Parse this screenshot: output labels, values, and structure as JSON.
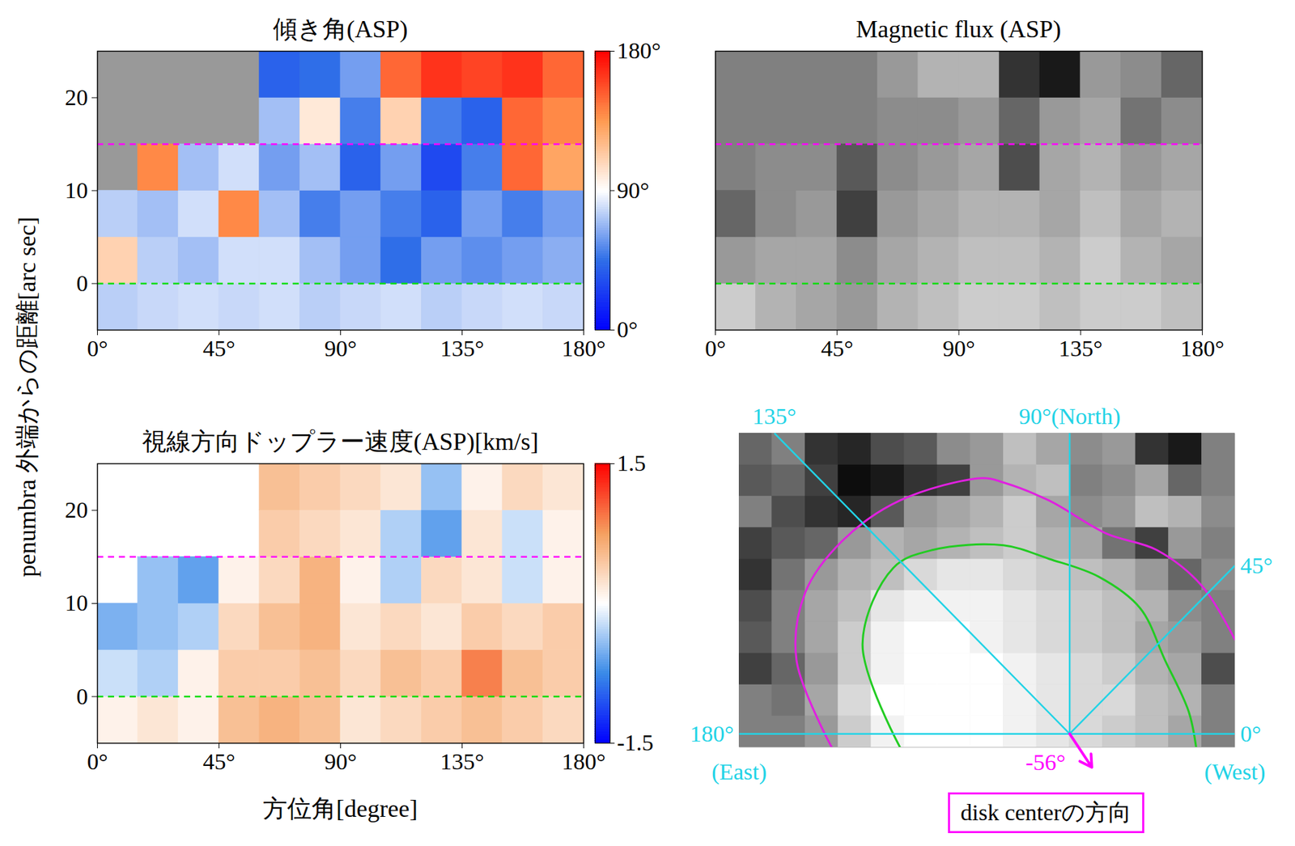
{
  "ylabel": "penumbra 外端からの距離[arc sec]",
  "chart_data": [
    {
      "type": "heatmap",
      "title": "傾き角(ASP)",
      "color": "#999999",
      "xlim": [
        0,
        180
      ],
      "ylim": [
        -5,
        25
      ],
      "xticks": [
        {
          "value": 0,
          "label": "0°"
        },
        {
          "value": 45,
          "label": "45°"
        },
        {
          "value": 90,
          "label": "90°"
        },
        {
          "value": 135,
          "label": "135°"
        },
        {
          "value": 180,
          "label": "180°"
        }
      ],
      "yticks": [
        0,
        10,
        20
      ],
      "x_edges": [
        0,
        15,
        30,
        45,
        60,
        75,
        90,
        105,
        120,
        135,
        150,
        165,
        180
      ],
      "y_edges": [
        -5,
        0,
        5,
        10,
        15,
        20,
        25
      ],
      "cells": [
        [
          75,
          78,
          80,
          78,
          80,
          75,
          78,
          80,
          75,
          78,
          80,
          78
        ],
        [
          110,
          75,
          70,
          80,
          80,
          70,
          60,
          45,
          60,
          55,
          60,
          65
        ],
        [
          75,
          70,
          80,
          140,
          70,
          50,
          60,
          50,
          40,
          60,
          50,
          60
        ],
        [
          null,
          140,
          70,
          80,
          60,
          70,
          40,
          60,
          30,
          50,
          150,
          130
        ],
        [
          null,
          null,
          null,
          null,
          70,
          100,
          50,
          110,
          50,
          40,
          150,
          140
        ],
        [
          null,
          null,
          null,
          null,
          40,
          45,
          60,
          150,
          165,
          160,
          165,
          150
        ]
      ],
      "color_scale": {
        "range": [
          0,
          180
        ],
        "colors": [
          "#0000ff",
          "#2f6ee8",
          "#ffffff",
          "#ff9a50",
          "#ff0000"
        ]
      },
      "colorbar_ticks": [
        {
          "value": 0,
          "label": "0°"
        },
        {
          "value": 90,
          "label": "90°"
        },
        {
          "value": 180,
          "label": "180°"
        }
      ],
      "reference_lines": [
        {
          "value": 15,
          "color": "#ff00ff"
        },
        {
          "value": 0,
          "color": "#00dd00"
        }
      ]
    },
    {
      "type": "heatmap",
      "title": "Magnetic flux (ASP)",
      "color": "#808080",
      "tick_labels": "x",
      "xlim": [
        0,
        180
      ],
      "ylim": [
        -5,
        25
      ],
      "xticks": [
        {
          "value": 0,
          "label": "0°"
        },
        {
          "value": 45,
          "label": "45°"
        },
        {
          "value": 90,
          "label": "90°"
        },
        {
          "value": 135,
          "label": "135°"
        },
        {
          "value": 180,
          "label": "180°"
        }
      ],
      "x_edges": [
        0,
        15,
        30,
        45,
        60,
        75,
        90,
        105,
        120,
        135,
        150,
        165,
        180
      ],
      "y_edges": [
        -5,
        0,
        5,
        10,
        15,
        20,
        25
      ],
      "cells": [
        [
          0.6,
          0.4,
          0.3,
          0.2,
          0.4,
          0.5,
          0.6,
          0.6,
          0.5,
          0.6,
          0.6,
          0.5
        ],
        [
          0.2,
          0.3,
          0.3,
          0.1,
          0.3,
          0.4,
          0.5,
          0.5,
          0.4,
          0.6,
          0.4,
          0.3
        ],
        [
          -0.2,
          0.1,
          0.2,
          -0.5,
          0.2,
          0.3,
          0.4,
          0.4,
          0.3,
          0.5,
          0.3,
          0.4
        ],
        [
          null,
          0.1,
          0.1,
          -0.3,
          0.1,
          0.2,
          0.3,
          -0.4,
          0.3,
          0.4,
          0.2,
          0.3
        ],
        [
          null,
          null,
          null,
          null,
          0.1,
          0.1,
          0.2,
          -0.2,
          0.2,
          0.3,
          -0.1,
          0.1
        ],
        [
          null,
          null,
          null,
          null,
          0.2,
          0.4,
          0.4,
          -0.6,
          -0.8,
          0.2,
          0.1,
          -0.2
        ]
      ],
      "color_scale": {
        "range": [
          -1,
          1
        ],
        "colors": [
          "#000000",
          "#ffffff"
        ]
      },
      "reference_lines": [
        {
          "value": 15,
          "color": "#ff00ff"
        },
        {
          "value": 0,
          "color": "#00dd00"
        }
      ]
    },
    {
      "type": "heatmap",
      "title": "視線方向ドップラー速度(ASP)[km/s]",
      "xlabel": "方位角[degree]",
      "color": "#ffffff",
      "xlim": [
        0,
        180
      ],
      "ylim": [
        -5,
        25
      ],
      "xticks": [
        {
          "value": 0,
          "label": "0°"
        },
        {
          "value": 45,
          "label": "45°"
        },
        {
          "value": 90,
          "label": "90°"
        },
        {
          "value": 135,
          "label": "135°"
        },
        {
          "value": 180,
          "label": "180°"
        }
      ],
      "yticks": [
        0,
        10,
        20
      ],
      "x_edges": [
        0,
        15,
        30,
        45,
        60,
        75,
        90,
        105,
        120,
        135,
        150,
        165,
        180
      ],
      "y_edges": [
        -5,
        0,
        5,
        10,
        15,
        20,
        25
      ],
      "cells": [
        [
          0.1,
          0.2,
          0.1,
          0.5,
          0.6,
          0.5,
          0.2,
          0.3,
          0.4,
          0.5,
          0.4,
          0.3
        ],
        [
          -0.2,
          -0.3,
          0.1,
          0.4,
          0.4,
          0.5,
          0.3,
          0.5,
          0.4,
          0.9,
          0.5,
          0.4
        ],
        [
          -0.5,
          -0.4,
          -0.3,
          0.3,
          0.5,
          0.6,
          0.2,
          0.3,
          0.2,
          0.4,
          0.3,
          0.4
        ],
        [
          null,
          -0.4,
          -0.6,
          0.1,
          0.3,
          0.6,
          0.1,
          -0.3,
          0.3,
          0.2,
          -0.2,
          0.1
        ],
        [
          null,
          null,
          null,
          null,
          0.4,
          0.3,
          0.2,
          -0.3,
          -0.6,
          0.2,
          -0.2,
          0.1
        ],
        [
          null,
          null,
          null,
          null,
          0.5,
          0.4,
          0.3,
          0.2,
          -0.4,
          0.1,
          0.3,
          0.2
        ]
      ],
      "color_scale": {
        "range": [
          -1.5,
          1.5
        ],
        "colors": [
          "#0000ff",
          "#3a8ae8",
          "#ffffff",
          "#f5a060",
          "#ff0000"
        ]
      },
      "colorbar_ticks": [
        -1.5,
        1.5
      ],
      "reference_lines": [
        {
          "value": 15,
          "color": "#ff00ff"
        },
        {
          "value": 0,
          "color": "#00dd00"
        }
      ]
    },
    {
      "type": "heatmap",
      "color": "#808080",
      "tick_labels": false,
      "xlim": [
        -75,
        37.5
      ],
      "ylim": [
        -3,
        67
      ],
      "x_edges": [
        -75,
        -67.5,
        -60,
        -52.5,
        -45,
        -37.5,
        -30,
        -22.5,
        -15,
        -7.5,
        0,
        7.5,
        15,
        22.5,
        30,
        37.5
      ],
      "y_edges": [
        -3,
        4,
        11,
        18,
        25,
        32,
        39,
        46,
        53,
        60,
        67
      ],
      "cells": [
        [
          0,
          0,
          0.2,
          0.6,
          0.9,
          1,
          1,
          1,
          0.9,
          0.8,
          0.7,
          0.6,
          0.5,
          0.3,
          0
        ],
        [
          0,
          -0.1,
          0.3,
          0.7,
          1,
          1,
          1,
          1,
          0.9,
          0.8,
          0.7,
          0.7,
          0.5,
          0.4,
          0
        ],
        [
          -0.5,
          -0.2,
          0.2,
          0.6,
          0.9,
          1,
          1,
          1,
          0.9,
          0.8,
          0.7,
          0.6,
          0.4,
          0.3,
          -0.4
        ],
        [
          -0.3,
          0,
          0.3,
          0.6,
          0.9,
          1,
          1,
          0.9,
          0.8,
          0.7,
          0.6,
          0.5,
          0.3,
          0.2,
          0
        ],
        [
          -0.4,
          0,
          0.3,
          0.5,
          0.8,
          0.9,
          0.9,
          0.9,
          0.8,
          0.7,
          0.6,
          0.5,
          0.4,
          0.1,
          0
        ],
        [
          -0.6,
          -0.1,
          0.2,
          0.4,
          0.5,
          0.7,
          0.8,
          0.8,
          0.7,
          0.6,
          0.5,
          0.4,
          0.2,
          -0.2,
          0.1
        ],
        [
          -0.5,
          -0.3,
          -0.2,
          0.2,
          0.4,
          0.3,
          0.4,
          0.5,
          0.6,
          0.4,
          0.3,
          -0.1,
          -0.5,
          0.2,
          0
        ],
        [
          0,
          -0.4,
          -0.6,
          -0.7,
          -0.3,
          0.2,
          0.3,
          0.4,
          0.6,
          0.3,
          0.1,
          0.2,
          0.5,
          0.4,
          0.1
        ],
        [
          -0.3,
          -0.2,
          -0.5,
          -0.9,
          -0.8,
          -0.6,
          -0.5,
          0.2,
          0.4,
          0.5,
          0,
          0.1,
          0.3,
          -0.2,
          0
        ],
        [
          -0.2,
          0,
          -0.6,
          -0.7,
          -0.4,
          -0.3,
          0.1,
          0.2,
          0.5,
          0.3,
          0.1,
          0.2,
          -0.6,
          -0.8,
          0
        ]
      ],
      "color_scale": {
        "range": [
          -1,
          1
        ],
        "colors": [
          "#000000",
          "#ffffff"
        ]
      },
      "contours": [
        {
          "color": "#e020e0",
          "x": [
            -54,
            -62,
            -60,
            -51.6,
            -38.5,
            -19.7,
            -15,
            -4.7,
            8.4,
            19.7,
            30,
            37.5
          ],
          "y": [
            -3,
            16.5,
            31.5,
            43,
            52,
            57,
            56,
            52,
            44.6,
            41,
            33,
            21
          ]
        },
        {
          "color": "#22cc22",
          "x": [
            -38.5,
            -47,
            -40,
            -31,
            -15,
            -4.7,
            6.6,
            16,
            21.6,
            27,
            28.7
          ],
          "y": [
            -3,
            20,
            37,
            41,
            42,
            39,
            35,
            28,
            16.5,
            5,
            -3
          ]
        }
      ],
      "center": {
        "x": 0,
        "y": 0
      },
      "directions": [
        {
          "angle": 0,
          "label": "0°",
          "sublabel": "(West)",
          "color": "#22d3e6"
        },
        {
          "angle": 45,
          "label": "45°",
          "color": "#22d3e6"
        },
        {
          "angle": 90,
          "label": "90°(North)",
          "color": "#22d3e6"
        },
        {
          "angle": 135,
          "label": "135°",
          "color": "#22d3e6"
        },
        {
          "angle": 180,
          "label": "180°",
          "sublabel": "(East)",
          "color": "#22d3e6"
        }
      ],
      "disk_center": {
        "angle": -56,
        "label": "-56°",
        "text": "disk centerの方向",
        "color": "#ff00ff"
      }
    }
  ]
}
